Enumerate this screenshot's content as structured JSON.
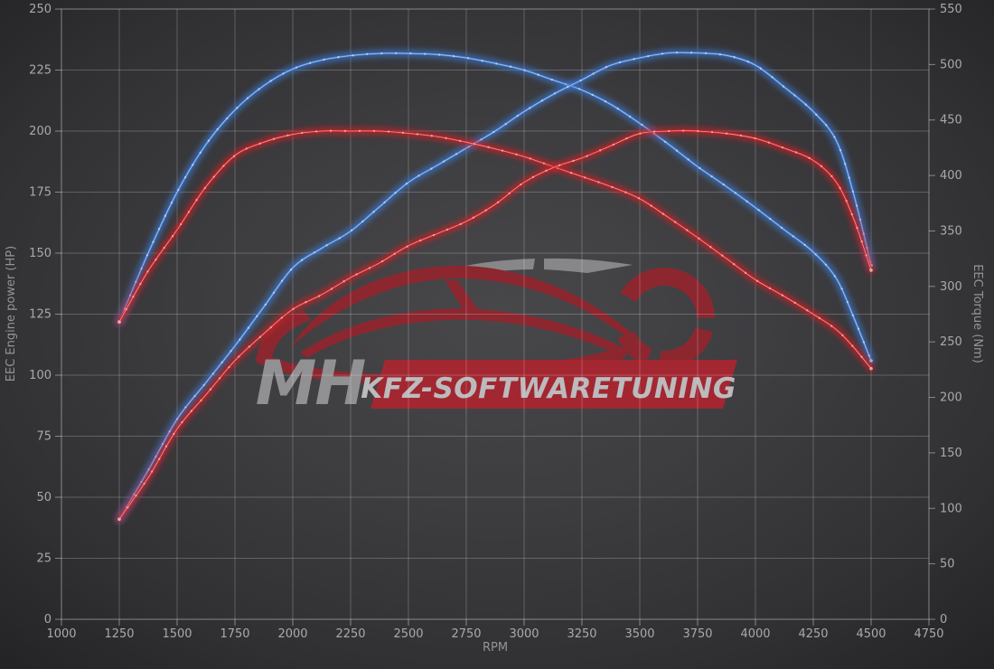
{
  "watermark": {
    "brand_short": "MH",
    "banner_text": "KFZ-SOFTWARETUNING",
    "car_color": "#93252e",
    "banner_color": "#ac2530",
    "swoosh_color": "#8d8d8f"
  },
  "chart_data": {
    "type": "line",
    "title": "",
    "xlabel": "RPM",
    "ylabel_left": "EEC Engine power (HP)",
    "ylabel_right": "EEC Torque (Nm)",
    "grid": true,
    "legend": "none",
    "x_range": [
      1000,
      4750
    ],
    "y_left_range": [
      0,
      250
    ],
    "y_right_range": [
      0,
      550
    ],
    "x_ticks": [
      1000,
      1250,
      1500,
      1750,
      2000,
      2250,
      2500,
      2750,
      3000,
      3250,
      3500,
      3750,
      4000,
      4250,
      4500,
      4750
    ],
    "y_left_ticks": [
      0,
      25,
      50,
      75,
      100,
      125,
      150,
      175,
      200,
      225,
      250
    ],
    "y_right_ticks": [
      0,
      50,
      100,
      150,
      200,
      250,
      300,
      350,
      400,
      450,
      500,
      550
    ],
    "rpm": [
      1250,
      1375,
      1500,
      1625,
      1750,
      1875,
      2000,
      2125,
      2250,
      2375,
      2500,
      2625,
      2750,
      2875,
      3000,
      3125,
      3250,
      3375,
      3500,
      3625,
      3750,
      3875,
      4000,
      4125,
      4250,
      4350,
      4425,
      4500
    ],
    "series": [
      {
        "name": "torque-blue",
        "axis": "right",
        "unit": "Nm",
        "color": "#3f7cd6",
        "highlight_color": "#b3d1f4",
        "values": [
          268,
          330,
          385,
          428,
          459,
          481,
          496,
          504,
          508,
          510,
          510,
          509,
          506,
          501,
          495,
          486,
          477,
          464,
          447,
          428,
          408,
          390,
          371,
          351,
          331,
          307,
          272,
          233
        ]
      },
      {
        "name": "power-blue",
        "axis": "left",
        "unit": "HP",
        "color": "#3f7cd6",
        "highlight_color": "#b3d1f4",
        "values": [
          41,
          61,
          82,
          97,
          112,
          128,
          144,
          152,
          159,
          169,
          179,
          186,
          193,
          200,
          208,
          215,
          221,
          227,
          230,
          232,
          232,
          231,
          227,
          218,
          208,
          196,
          174,
          145
        ]
      },
      {
        "name": "torque-red",
        "axis": "right",
        "unit": "Nm",
        "color": "#d02127",
        "highlight_color": "#f8a2a2",
        "values": [
          268,
          314,
          351,
          390,
          418,
          430,
          437,
          440,
          440,
          440,
          438,
          435,
          430,
          424,
          417,
          408,
          399,
          390,
          379,
          362,
          344,
          325,
          306,
          291,
          275,
          261,
          245,
          226
        ]
      },
      {
        "name": "power-red",
        "axis": "left",
        "unit": "HP",
        "color": "#d02127",
        "highlight_color": "#f8a2a2",
        "values": [
          41,
          58,
          78,
          92,
          106,
          117,
          127,
          133,
          140,
          146,
          153,
          158,
          163,
          170,
          179,
          185,
          189,
          194,
          199,
          200,
          200,
          199,
          197,
          193,
          188,
          179,
          164,
          143
        ]
      }
    ]
  }
}
